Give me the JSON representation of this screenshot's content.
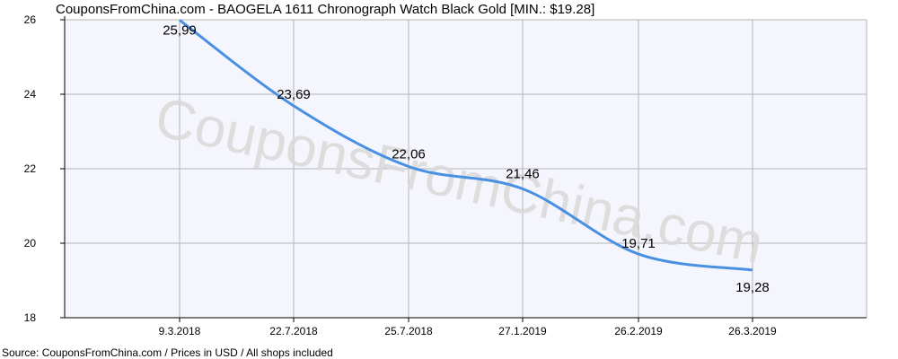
{
  "chart_data": {
    "type": "line",
    "title": "CouponsFromChina.com - BAOGELA 1611 Chronograph Watch Black Gold [MIN.: $19.28]",
    "source": "Source: CouponsFromChina.com / Prices in USD / All shops included",
    "watermark": "CouponsFromChina.com",
    "categories": [
      "9.3.2018",
      "22.7.2018",
      "25.7.2018",
      "27.1.2019",
      "26.2.2019",
      "26.3.2019"
    ],
    "values": [
      25.99,
      23.69,
      22.06,
      21.46,
      19.71,
      19.28
    ],
    "value_labels": [
      "25,99",
      "23,69",
      "22,06",
      "21,46",
      "19,71",
      "19,28"
    ],
    "ylim": [
      18,
      26
    ],
    "yticks": [
      18,
      20,
      22,
      24,
      26
    ],
    "grid": true,
    "line_color": "#4a90e2",
    "plot_background": "#f5f6fd"
  }
}
